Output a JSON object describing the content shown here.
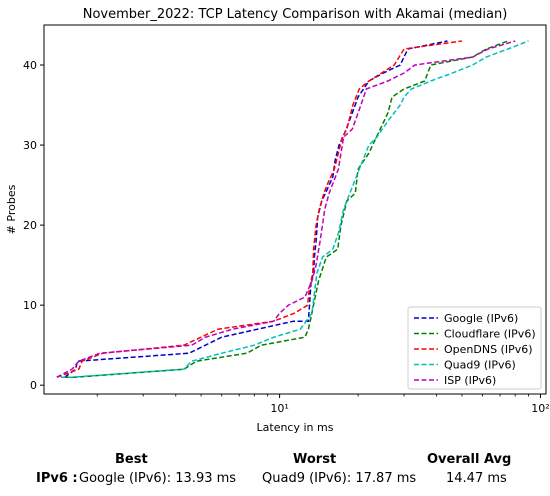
{
  "chart_data": {
    "type": "line",
    "title": "November_2022: TCP Latency Comparison with Akamai (median)",
    "xlabel": "Latency in ms",
    "ylabel": "# Probes",
    "xscale": "log",
    "xlim": [
      1.25,
      105
    ],
    "ylim": [
      -1.1,
      45
    ],
    "xticks": [
      {
        "value": 10,
        "label": "10¹"
      },
      {
        "value": 100,
        "label": "10²"
      }
    ],
    "yticks": [
      0,
      10,
      20,
      30,
      40
    ],
    "grid": false,
    "legend": "bottom-right",
    "series": [
      {
        "name": "Google (IPv6)",
        "color": "#0000cc",
        "dash": "dashed",
        "points": [
          [
            1.5,
            1
          ],
          [
            1.65,
            2
          ],
          [
            1.68,
            3
          ],
          [
            4.5,
            4
          ],
          [
            6,
            6
          ],
          [
            11.3,
            8
          ],
          [
            12.9,
            8
          ],
          [
            13.2,
            13
          ],
          [
            13.5,
            14
          ],
          [
            13.6,
            16
          ],
          [
            13.8,
            18
          ],
          [
            14.0,
            21
          ],
          [
            14.5,
            23
          ],
          [
            15.0,
            24
          ],
          [
            16.0,
            26
          ],
          [
            16.3,
            28
          ],
          [
            16.9,
            30
          ],
          [
            17.5,
            31
          ],
          [
            18.0,
            32
          ],
          [
            19.0,
            34
          ],
          [
            20.0,
            36
          ],
          [
            22.0,
            38
          ],
          [
            25.0,
            39
          ],
          [
            29.0,
            40
          ],
          [
            31.0,
            42
          ],
          [
            44.0,
            43
          ]
        ]
      },
      {
        "name": "Cloudflare (IPv6)",
        "color": "#008000",
        "dash": "dashed",
        "points": [
          [
            1.5,
            1
          ],
          [
            1.65,
            1
          ],
          [
            4.3,
            2
          ],
          [
            4.8,
            3
          ],
          [
            7.5,
            4
          ],
          [
            8.5,
            5
          ],
          [
            12.5,
            6
          ],
          [
            12.9,
            7
          ],
          [
            13.1,
            8
          ],
          [
            14.1,
            13
          ],
          [
            15.1,
            16
          ],
          [
            16.7,
            17
          ],
          [
            17.2,
            20
          ],
          [
            18.1,
            23
          ],
          [
            19.5,
            24
          ],
          [
            20.0,
            27
          ],
          [
            22.0,
            29
          ],
          [
            23.5,
            31
          ],
          [
            26.0,
            34
          ],
          [
            27.0,
            36
          ],
          [
            30.0,
            37
          ],
          [
            36.0,
            38
          ],
          [
            38.0,
            40
          ],
          [
            55.0,
            41
          ],
          [
            62.0,
            42
          ],
          [
            75.0,
            43
          ]
        ]
      },
      {
        "name": "OpenDNS (IPv6)",
        "color": "#ff0000",
        "dash": "dashed",
        "points": [
          [
            1.4,
            1
          ],
          [
            1.7,
            2
          ],
          [
            1.75,
            3
          ],
          [
            2.1,
            4
          ],
          [
            4.3,
            5
          ],
          [
            5.8,
            7
          ],
          [
            9.5,
            8
          ],
          [
            11.4,
            9
          ],
          [
            12.8,
            10
          ],
          [
            13.0,
            12
          ],
          [
            13.4,
            14
          ],
          [
            13.5,
            17
          ],
          [
            13.8,
            20
          ],
          [
            14.2,
            22
          ],
          [
            14.8,
            24
          ],
          [
            15.2,
            25
          ],
          [
            16.2,
            27
          ],
          [
            16.8,
            29
          ],
          [
            17.4,
            31
          ],
          [
            18.1,
            32
          ],
          [
            19.1,
            35
          ],
          [
            20.2,
            37
          ],
          [
            22.0,
            38
          ],
          [
            27.5,
            40
          ],
          [
            30.0,
            42
          ],
          [
            50.0,
            43
          ]
        ]
      },
      {
        "name": "Quad9 (IPv6)",
        "color": "#00bfbf",
        "dash": "dashed",
        "points": [
          [
            1.45,
            1
          ],
          [
            1.6,
            1
          ],
          [
            4.3,
            2
          ],
          [
            4.6,
            3
          ],
          [
            6.0,
            4
          ],
          [
            8.0,
            5
          ],
          [
            9.5,
            6
          ],
          [
            12.0,
            7
          ],
          [
            13.3,
            9
          ],
          [
            13.9,
            14
          ],
          [
            14.6,
            16
          ],
          [
            16.0,
            17
          ],
          [
            16.8,
            19
          ],
          [
            17.6,
            22
          ],
          [
            18.6,
            24
          ],
          [
            20.2,
            27
          ],
          [
            22.0,
            30
          ],
          [
            23.6,
            31
          ],
          [
            26.0,
            33
          ],
          [
            29.0,
            35
          ],
          [
            30.0,
            36
          ],
          [
            32.0,
            37
          ],
          [
            38.0,
            38
          ],
          [
            46.0,
            39
          ],
          [
            55.0,
            40
          ],
          [
            62.0,
            41
          ],
          [
            75.0,
            42
          ],
          [
            90.0,
            43
          ]
        ]
      },
      {
        "name": "ISP (IPv6)",
        "color": "#bf00bf",
        "dash": "dashed",
        "points": [
          [
            1.4,
            1
          ],
          [
            1.6,
            2
          ],
          [
            1.7,
            3
          ],
          [
            2.05,
            4
          ],
          [
            4.6,
            5
          ],
          [
            5.2,
            6
          ],
          [
            6.6,
            7
          ],
          [
            9.5,
            8
          ],
          [
            10.0,
            9
          ],
          [
            10.8,
            10
          ],
          [
            12.5,
            11
          ],
          [
            13.3,
            13
          ],
          [
            13.8,
            15
          ],
          [
            14.3,
            18
          ],
          [
            14.9,
            22
          ],
          [
            15.5,
            24
          ],
          [
            16.8,
            27
          ],
          [
            17.2,
            29
          ],
          [
            17.6,
            31
          ],
          [
            19.0,
            32
          ],
          [
            20.5,
            35
          ],
          [
            21.5,
            37
          ],
          [
            26.0,
            38
          ],
          [
            30.0,
            39
          ],
          [
            33.0,
            40
          ],
          [
            55.0,
            41
          ],
          [
            63.0,
            42
          ],
          [
            80.0,
            43
          ]
        ]
      }
    ]
  },
  "stats": {
    "best_header": "Best",
    "worst_header": "Worst",
    "avg_header": "Overall Avg",
    "row_label": "IPv6 :",
    "best_value": "Google (IPv6): 13.93 ms",
    "worst_value": "Quad9 (IPv6): 17.87 ms",
    "avg_value": "14.47 ms"
  }
}
